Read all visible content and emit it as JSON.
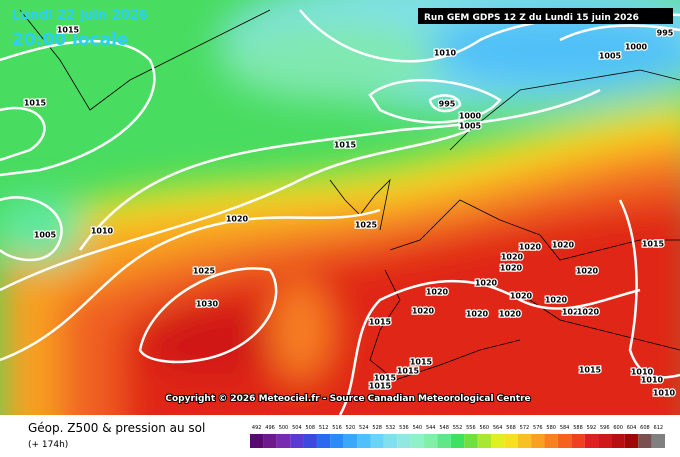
{
  "header": {
    "date": "Lundi 22 juin 2026",
    "time": "20:00 locale",
    "run": "Run GEM GDPS 12 Z du Lundi 15 juin 2026"
  },
  "isobars": [
    "1015",
    "1015",
    "1010",
    "1000",
    "995",
    "1005",
    "995",
    "1000",
    "1005",
    "1015",
    "1005",
    "1010",
    "1020",
    "1025",
    "1025",
    "1030",
    "1020",
    "1020",
    "1020",
    "1020",
    "1015",
    "1020",
    "1020",
    "1020",
    "1020",
    "1020",
    "1020",
    "1020",
    "1020",
    "1020",
    "1020",
    "1015",
    "1015",
    "1015",
    "1015",
    "1015",
    "1015",
    "1010",
    "1010",
    "1010"
  ],
  "copyright": "Copyright © 2026 Meteociel.fr - Source Canadian Meteorological Centre",
  "footer": {
    "title": "Géop. Z500 & pression au sol",
    "lead": "(+ 174h)"
  },
  "legend": {
    "values": [
      492,
      496,
      500,
      504,
      508,
      512,
      516,
      520,
      524,
      528,
      532,
      536,
      540,
      544,
      548,
      552,
      556,
      560,
      564,
      568,
      572,
      576,
      580,
      584,
      588,
      592,
      596,
      600,
      604,
      608,
      612
    ],
    "colors": [
      "#5a0a6e",
      "#6e1a8c",
      "#7a2ab0",
      "#5a3ad0",
      "#3a4ae0",
      "#2a6af0",
      "#2a8af8",
      "#3aa8fa",
      "#50c0fa",
      "#6ad4f8",
      "#80e0f0",
      "#90e8e0",
      "#90f0c8",
      "#80f0a8",
      "#60e888",
      "#40e060",
      "#70e040",
      "#a8e830",
      "#e0f020",
      "#f8e020",
      "#f8c020",
      "#f8a020",
      "#f88020",
      "#f86020",
      "#f04020",
      "#e02020",
      "#d01818",
      "#b81010",
      "#a00808",
      "#7a5050",
      "#808080"
    ]
  }
}
